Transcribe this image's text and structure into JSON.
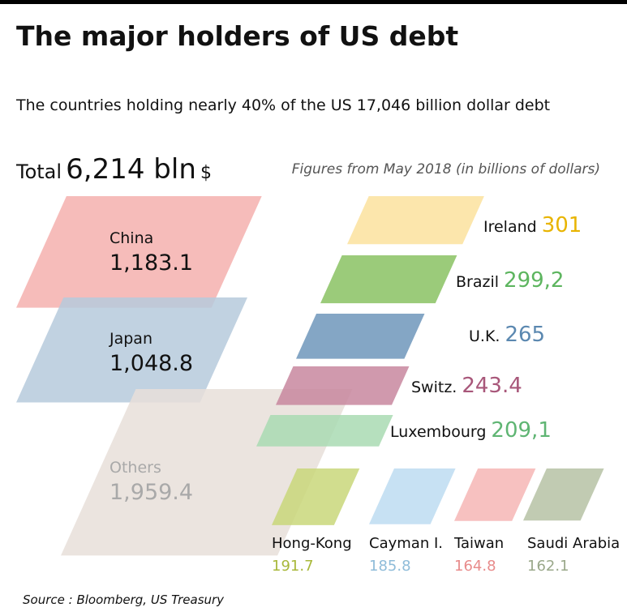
{
  "chart_data": {
    "type": "parallelogram",
    "title": "The major holders of US debt",
    "subtitle": "The countries  holding nearly 40% of the US 17,046 billion dollar debt",
    "total": {
      "label": "Total",
      "value": 6214,
      "value_label": "6,214 bln",
      "unit": "$"
    },
    "note": "Figures from May 2018 (in billions of dollars)",
    "source": "Source : Bloomberg, US Treasury",
    "categories": [
      "China",
      "Japan",
      "Others",
      "Ireland",
      "Brazil",
      "U.K.",
      "Switz.",
      "Luxembourg",
      "Hong-Kong",
      "Cayman I.",
      "Taiwan",
      "Saudi Arabia"
    ],
    "values": [
      1183.1,
      1048.8,
      1959.4,
      301,
      299.2,
      265,
      243.4,
      209.1,
      191.7,
      185.8,
      164.8,
      162.1
    ],
    "value_labels": [
      "1,183.1",
      "1,048.8",
      "1,959.4",
      "301",
      "299,2",
      "265",
      "243.4",
      "209,1",
      "191.7",
      "185.8",
      "164.8",
      "162.1"
    ],
    "colors": [
      "#f4b0ae",
      "#b6cadc",
      "#e8dfd9",
      "#fbe29e",
      "#8ac263",
      "#6f96bb",
      "#c8879f",
      "#a9dab3",
      "#c9d77a",
      "#bddcf1",
      "#f6b6b5",
      "#b6c2a4"
    ],
    "label_colors": [
      "#111111",
      "#111111",
      "#a9a9a9",
      "#e8b400",
      "#5db55f",
      "#5b88b0",
      "#a8577a",
      "#5fb573",
      "#a8b83a",
      "#8fbcd9",
      "#e88b8b",
      "#9aa88a"
    ]
  }
}
